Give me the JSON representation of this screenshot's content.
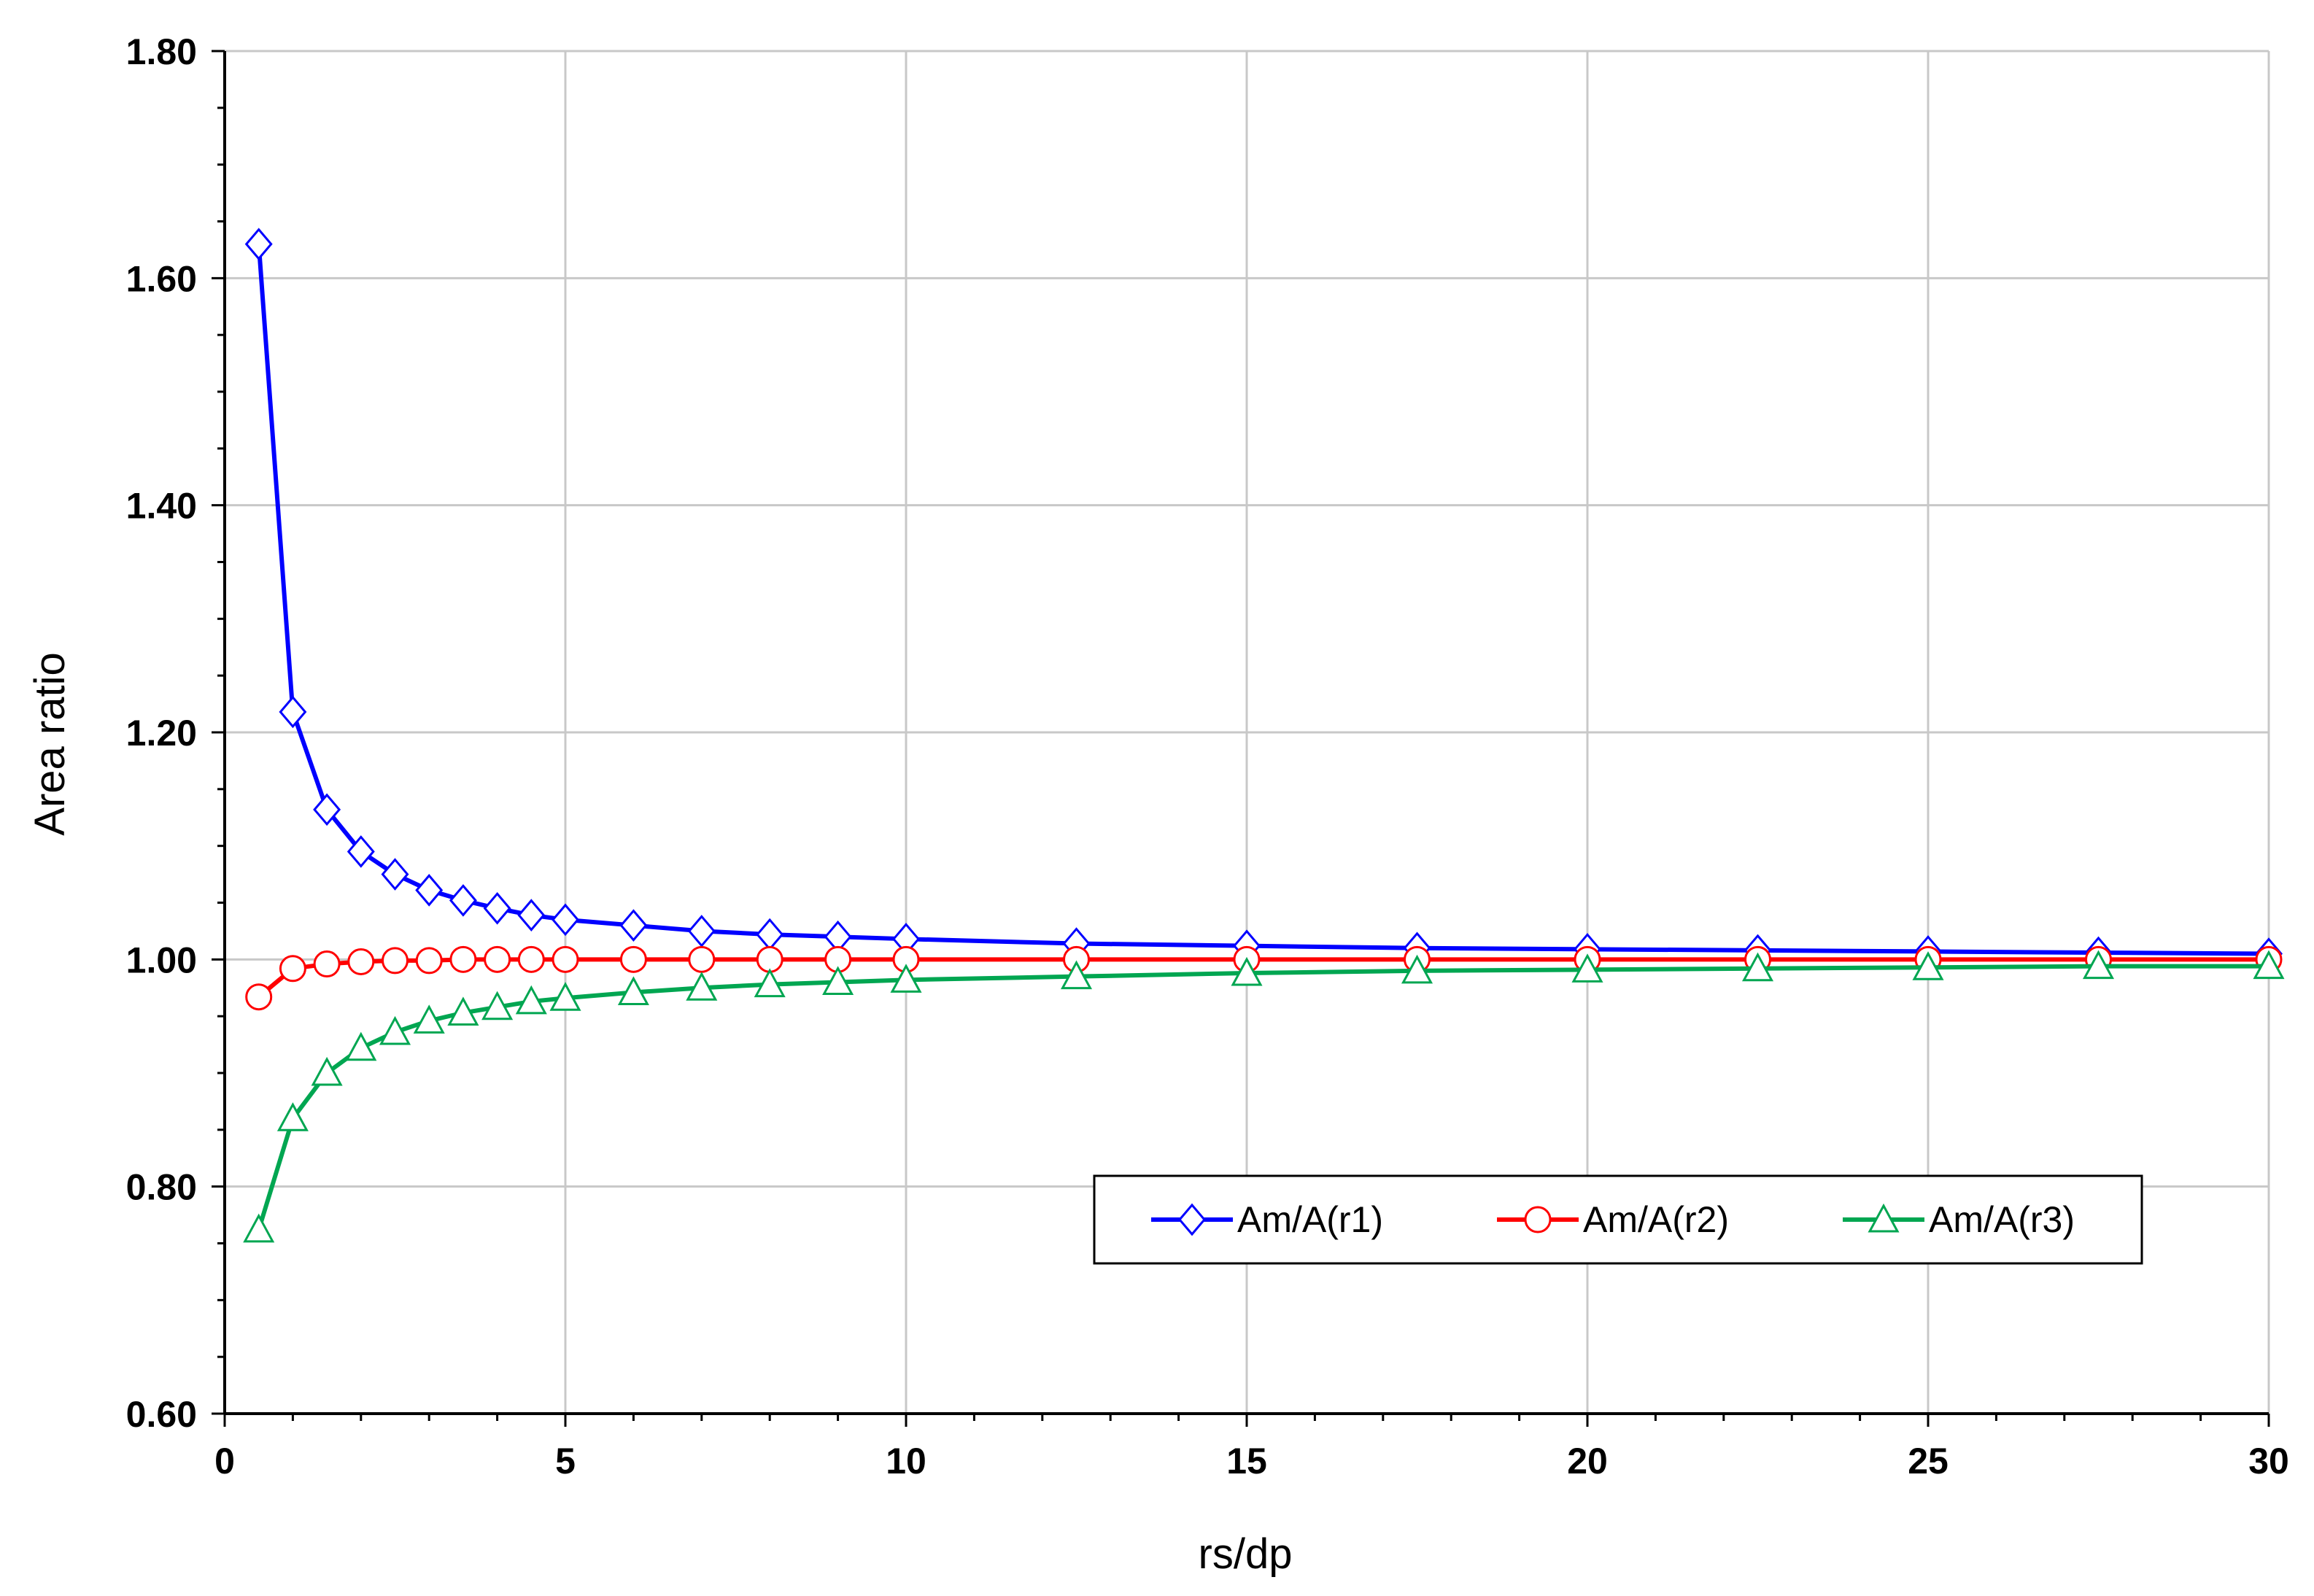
{
  "chart_data": {
    "type": "line",
    "title": "",
    "xlabel": "rs/dp",
    "ylabel": "Area ratio",
    "xlim": [
      0,
      30
    ],
    "ylim": [
      0.6,
      1.8
    ],
    "x_ticks": [
      0,
      5,
      10,
      15,
      20,
      25,
      30
    ],
    "x_tick_labels": [
      "0",
      "5",
      "10",
      "15",
      "20",
      "25",
      "30"
    ],
    "y_ticks": [
      0.6,
      0.8,
      1.0,
      1.2,
      1.4,
      1.6,
      1.8
    ],
    "y_tick_labels": [
      "0.60",
      "0.80",
      "1.00",
      "1.20",
      "1.40",
      "1.60",
      "1.80"
    ],
    "grid": true,
    "legend_position": "bottom-right",
    "series": [
      {
        "name": "Am/A(r1)",
        "color": "#0000ff",
        "marker": "diamond",
        "x": [
          0.5,
          1,
          1.5,
          2,
          2.5,
          3,
          3.5,
          4,
          4.5,
          5,
          6,
          7,
          8,
          9,
          10,
          12.5,
          15,
          17.5,
          20,
          22.5,
          25,
          27.5,
          30
        ],
        "values": [
          1.63,
          1.218,
          1.132,
          1.095,
          1.075,
          1.061,
          1.052,
          1.045,
          1.039,
          1.035,
          1.03,
          1.025,
          1.022,
          1.02,
          1.018,
          1.014,
          1.012,
          1.01,
          1.009,
          1.008,
          1.007,
          1.006,
          1.005
        ]
      },
      {
        "name": "Am/A(r2)",
        "color": "#ff0000",
        "marker": "circle",
        "x": [
          0.5,
          1,
          1.5,
          2,
          2.5,
          3,
          3.5,
          4,
          4.5,
          5,
          6,
          7,
          8,
          9,
          10,
          12.5,
          15,
          17.5,
          20,
          22.5,
          25,
          27.5,
          30
        ],
        "values": [
          0.967,
          0.992,
          0.996,
          0.998,
          0.999,
          0.999,
          1.0,
          1.0,
          1.0,
          1.0,
          1.0,
          1.0,
          1.0,
          1.0,
          1.0,
          1.0,
          1.0,
          1.0,
          1.0,
          1.0,
          1.0,
          1.0,
          1.0
        ]
      },
      {
        "name": "Am/A(r3)",
        "color": "#00a651",
        "marker": "triangle",
        "x": [
          0.5,
          1,
          1.5,
          2,
          2.5,
          3,
          3.5,
          4,
          4.5,
          5,
          6,
          7,
          8,
          9,
          10,
          12.5,
          15,
          17.5,
          20,
          22.5,
          25,
          27.5,
          30
        ],
        "values": [
          0.762,
          0.86,
          0.9,
          0.922,
          0.936,
          0.946,
          0.953,
          0.958,
          0.963,
          0.966,
          0.971,
          0.975,
          0.978,
          0.98,
          0.982,
          0.985,
          0.988,
          0.99,
          0.991,
          0.992,
          0.993,
          0.994,
          0.994
        ]
      }
    ]
  }
}
